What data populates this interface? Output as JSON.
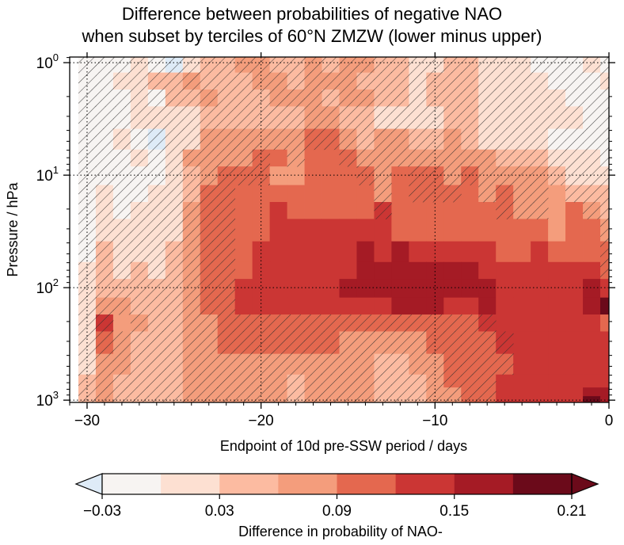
{
  "chart_data": {
    "type": "heatmap",
    "title_lines": [
      "Difference between probabilities of negative NAO",
      "when subset by terciles of 60°N ZMZW (lower minus upper)"
    ],
    "xlabel": "Endpoint of 10d pre-SSW period / days",
    "ylabel": "Pressure / hPa",
    "xlim": [
      -31,
      0
    ],
    "ylim_hPa": [
      1,
      1000
    ],
    "y_scale": "log",
    "y_inverted": true,
    "x_ticks": [
      -30,
      -20,
      -10,
      0
    ],
    "x_tick_labels": [
      "−30",
      "−20",
      "−10",
      "0"
    ],
    "y_ticks": [
      1,
      10,
      100,
      1000
    ],
    "grid": true,
    "hatching": "diagonal hatching over cells that are not significant",
    "colorbar": {
      "label": "Difference in probability of NAO-",
      "tick_labels": [
        "−0.03",
        "0.03",
        "0.09",
        "0.15",
        "0.21"
      ],
      "tick_values": [
        -0.03,
        0.03,
        0.09,
        0.15,
        0.21
      ],
      "bin_edges": [
        -0.03,
        0.0,
        0.03,
        0.06,
        0.09,
        0.12,
        0.15,
        0.18,
        0.21
      ],
      "extend": "both",
      "colors": [
        "#deebf7",
        "#f7f4f2",
        "#fde0d2",
        "#fcbba1",
        "#f49d7c",
        "#e4684f",
        "#cb3634",
        "#a51b25",
        "#6b0a1a"
      ]
    },
    "x_days": [
      -30,
      -29,
      -28,
      -27,
      -26,
      -25,
      -24,
      -23,
      -22,
      -21,
      -20,
      -19,
      -18,
      -17,
      -16,
      -15,
      -14,
      -13,
      -12,
      -11,
      -10,
      -9,
      -8,
      -7,
      -6,
      -5,
      -4,
      -3,
      -2,
      -1,
      0
    ],
    "levels_hPa": [
      1,
      1.5,
      2,
      3,
      5,
      7,
      10,
      15,
      20,
      30,
      50,
      70,
      100,
      150,
      200,
      300,
      500,
      700,
      850,
      1000
    ],
    "values_bin": [
      "1112102334433434433223322211121",
      "1122334333443444333233322221112",
      "1112133433344434433233322222111",
      "1112222333333443322223322222211",
      "1121022444444554344334322221111",
      "1112124444554555444444443332221",
      "1111123455544555545554544443222",
      "1211223555555555545555545444333",
      "1212224555565555565555555444543",
      "1222224555566666665555555554554",
      "1322234555666666767666665565555",
      "2323234555666666777777766666665",
      "2333334556666667777777776666676",
      "2443334556666666667776676666678",
      "2644334455555555555555566666665",
      "2543334455555554444455556666666",
      "2443334444444444433445555666666",
      "3433334444443444433345556666666",
      "3433334444443444433344556666677",
      "3433334444443444433344556666687"
    ],
    "significant": [
      "0000000000000000000000000000000",
      "0000000000000000000000000000000",
      "0000000000000000000000000000000",
      "0000000000000000000000000000000",
      "0000000000000000000000000000000",
      "0000000000010110000000000000000",
      "0000000000011111001000000000000",
      "0000000001111111101000100001000",
      "0000000001111111101111110001100",
      "0000000001111111111111111111110",
      "0000000001111111111111111111110",
      "0000000001111111111111111111110",
      "0000000001111111111111111111111",
      "0000000001111111111111111111111",
      "0010000000000000000000001111111",
      "0000000000000000000000000111111",
      "0000000000000000000000000111111",
      "0000000000000000000000001111111",
      "0000000000000000000000001111111",
      "0000000000000000000000001111111"
    ]
  }
}
